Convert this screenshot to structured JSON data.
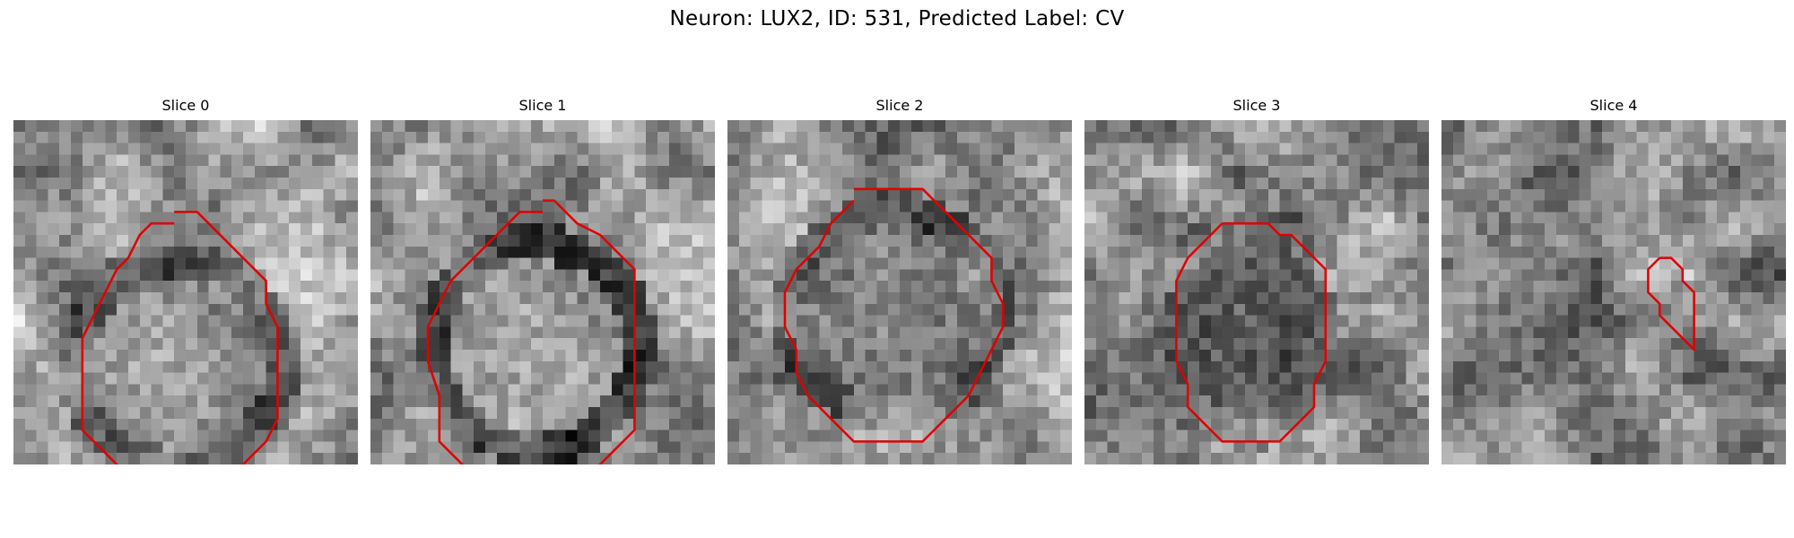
{
  "figure": {
    "title": "Neuron: LUX2, ID: 531, Predicted Label: CV"
  },
  "panels": [
    {
      "title": "Slice 0",
      "seed": 11,
      "bg_mean": 0.62,
      "center_mean": 0.55,
      "ring_dark": 0.18,
      "outline": [
        [
          14,
          8
        ],
        [
          16,
          8
        ],
        [
          17,
          9
        ],
        [
          18,
          10
        ],
        [
          20,
          12
        ],
        [
          22,
          14
        ],
        [
          22,
          16
        ],
        [
          23,
          18
        ],
        [
          23,
          21
        ],
        [
          23,
          24
        ],
        [
          23,
          26
        ],
        [
          22,
          28
        ],
        [
          21,
          29
        ],
        [
          20,
          30
        ],
        [
          19,
          31
        ],
        [
          18,
          32
        ],
        [
          16,
          33
        ],
        [
          14,
          33
        ],
        [
          12,
          33
        ],
        [
          11,
          32
        ],
        [
          10,
          31
        ],
        [
          9,
          30
        ],
        [
          8,
          29
        ],
        [
          7,
          28
        ],
        [
          6,
          27
        ],
        [
          6,
          24
        ],
        [
          6,
          21
        ],
        [
          6,
          19
        ],
        [
          7,
          17
        ],
        [
          8,
          15
        ],
        [
          9,
          13
        ],
        [
          10,
          12
        ],
        [
          11,
          10
        ],
        [
          12,
          9
        ],
        [
          14,
          9
        ]
      ]
    },
    {
      "title": "Slice 1",
      "seed": 23,
      "bg_mean": 0.58,
      "center_mean": 0.62,
      "ring_dark": 0.25,
      "outline": [
        [
          15,
          7
        ],
        [
          16,
          7
        ],
        [
          17,
          8
        ],
        [
          18,
          9
        ],
        [
          20,
          10
        ],
        [
          21,
          11
        ],
        [
          22,
          12
        ],
        [
          23,
          13
        ],
        [
          23,
          16
        ],
        [
          23,
          19
        ],
        [
          23,
          22
        ],
        [
          23,
          27
        ],
        [
          22,
          28
        ],
        [
          21,
          29
        ],
        [
          20,
          30
        ],
        [
          19,
          31
        ],
        [
          17,
          31
        ],
        [
          16,
          31
        ],
        [
          15,
          32
        ],
        [
          13,
          32
        ],
        [
          12,
          31
        ],
        [
          11,
          31
        ],
        [
          9,
          31
        ],
        [
          8,
          30
        ],
        [
          7,
          29
        ],
        [
          6,
          28
        ],
        [
          6,
          24
        ],
        [
          5,
          21
        ],
        [
          5,
          18
        ],
        [
          6,
          16
        ],
        [
          7,
          14
        ],
        [
          8,
          13
        ],
        [
          9,
          12
        ],
        [
          10,
          11
        ],
        [
          11,
          10
        ],
        [
          12,
          9
        ],
        [
          13,
          8
        ],
        [
          15,
          8
        ]
      ]
    },
    {
      "title": "Slice 2",
      "seed": 37,
      "bg_mean": 0.6,
      "center_mean": 0.4,
      "ring_dark": 0.2,
      "outline": [
        [
          11,
          6
        ],
        [
          15,
          6
        ],
        [
          17,
          6
        ],
        [
          18,
          7
        ],
        [
          19,
          8
        ],
        [
          20,
          9
        ],
        [
          21,
          10
        ],
        [
          22,
          11
        ],
        [
          23,
          12
        ],
        [
          23,
          14
        ],
        [
          24,
          16
        ],
        [
          24,
          18
        ],
        [
          23,
          20
        ],
        [
          22,
          22
        ],
        [
          21,
          24
        ],
        [
          20,
          25
        ],
        [
          19,
          26
        ],
        [
          18,
          27
        ],
        [
          17,
          28
        ],
        [
          14,
          28
        ],
        [
          11,
          28
        ],
        [
          10,
          27
        ],
        [
          9,
          26
        ],
        [
          8,
          25
        ],
        [
          7,
          24
        ],
        [
          6,
          22
        ],
        [
          6,
          20
        ],
        [
          5,
          18
        ],
        [
          5,
          15
        ],
        [
          6,
          13
        ],
        [
          7,
          12
        ],
        [
          8,
          11
        ],
        [
          9,
          9
        ],
        [
          10,
          8
        ],
        [
          11,
          7
        ]
      ]
    },
    {
      "title": "Slice 3",
      "seed": 53,
      "bg_mean": 0.58,
      "center_mean": 0.25,
      "ring_dark": 0.1,
      "outline": [
        [
          12,
          9
        ],
        [
          16,
          9
        ],
        [
          17,
          10
        ],
        [
          18,
          10
        ],
        [
          19,
          11
        ],
        [
          20,
          12
        ],
        [
          21,
          13
        ],
        [
          21,
          15
        ],
        [
          21,
          18
        ],
        [
          21,
          21
        ],
        [
          20,
          23
        ],
        [
          20,
          25
        ],
        [
          19,
          26
        ],
        [
          18,
          27
        ],
        [
          17,
          28
        ],
        [
          16,
          28
        ],
        [
          12,
          28
        ],
        [
          11,
          27
        ],
        [
          10,
          26
        ],
        [
          9,
          25
        ],
        [
          9,
          23
        ],
        [
          8,
          21
        ],
        [
          8,
          19
        ],
        [
          8,
          16
        ],
        [
          8,
          14
        ],
        [
          9,
          12
        ],
        [
          10,
          11
        ],
        [
          11,
          10
        ],
        [
          12,
          9
        ]
      ]
    },
    {
      "title": "Slice 4",
      "seed": 71,
      "bg_mean": 0.45,
      "center_mean": 0.55,
      "ring_dark": 0.0,
      "outline": [
        [
          19,
          12
        ],
        [
          20,
          12
        ],
        [
          21,
          13
        ],
        [
          21,
          14
        ],
        [
          22,
          15
        ],
        [
          22,
          16
        ],
        [
          22,
          18
        ],
        [
          22,
          20
        ],
        [
          21,
          19
        ],
        [
          20,
          18
        ],
        [
          19,
          17
        ],
        [
          19,
          16
        ],
        [
          18,
          15
        ],
        [
          18,
          14
        ],
        [
          18,
          13
        ],
        [
          19,
          12
        ]
      ]
    }
  ]
}
